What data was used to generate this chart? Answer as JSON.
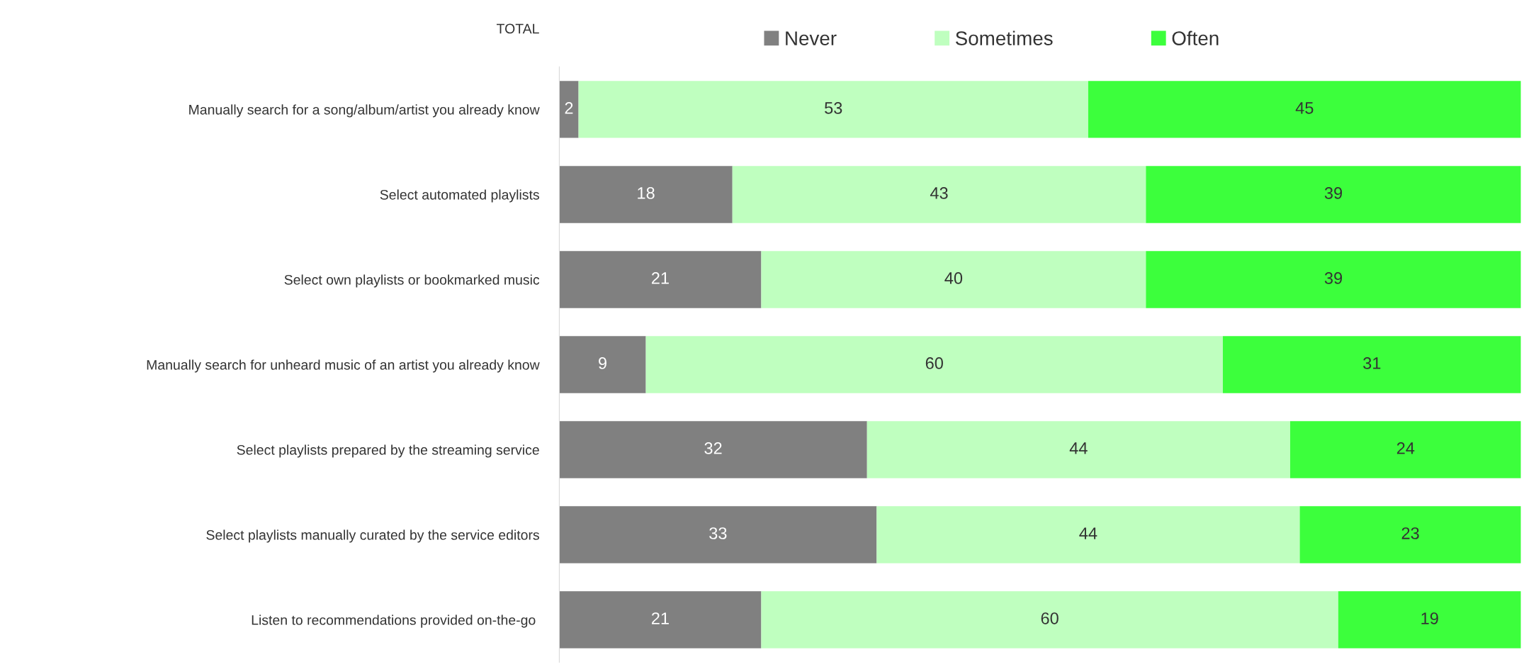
{
  "chart_data": {
    "type": "bar",
    "orientation": "horizontal",
    "stacked": true,
    "categories": [
      "Manually search for a song/album/artist you already know",
      "Select automated playlists",
      "Select own playlists or bookmarked music",
      "Manually search for unheard music of an artist you already know",
      "Select playlists prepared by the streaming service",
      "Select playlists manually curated by the service editors",
      "Listen to recommendations provided on-the-go "
    ],
    "series": [
      {
        "name": "Never",
        "color": "#808080",
        "values": [
          2,
          18,
          21,
          9,
          32,
          33,
          21
        ]
      },
      {
        "name": "Sometimes",
        "color": "#bfffbf",
        "values": [
          53,
          43,
          40,
          60,
          44,
          44,
          60
        ]
      },
      {
        "name": "Often",
        "color": "#3cff3c",
        "values": [
          45,
          39,
          39,
          31,
          24,
          23,
          19
        ]
      }
    ],
    "xlim": [
      0,
      100
    ],
    "tick_labels": "y",
    "data_labels": true,
    "legend": "top",
    "grid": false,
    "annotations": [
      "TOTAL"
    ]
  }
}
